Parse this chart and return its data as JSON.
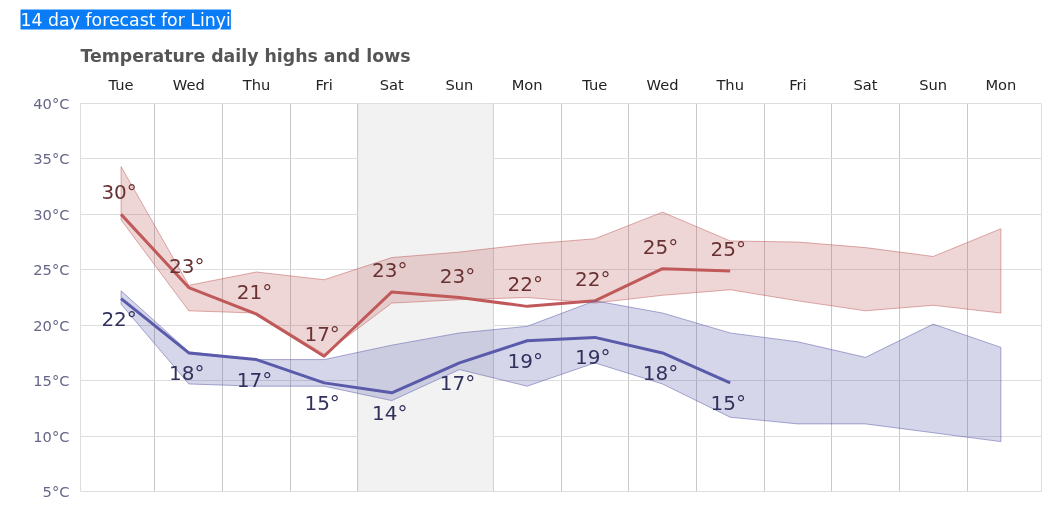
{
  "chart_data": {
    "type": "line",
    "title": "14 day forecast for Linyi",
    "subtitle": "Temperature daily highs and lows",
    "categories": [
      "Tue",
      "Wed",
      "Thu",
      "Fri",
      "Sat",
      "Sun",
      "Mon",
      "Tue",
      "Wed",
      "Thu",
      "Fri",
      "Sat",
      "Sun",
      "Mon"
    ],
    "series": [
      {
        "color": "#c05a5a",
        "values": [
          30.0,
          23.4,
          21.0,
          17.2,
          23.0,
          22.5,
          21.7,
          22.2,
          25.1,
          24.9,
          null,
          null,
          null,
          null
        ],
        "value_labels": [
          "30°",
          "23°",
          "21°",
          "17°",
          "23°",
          "23°",
          "22°",
          "22°",
          "25°",
          "25°",
          null,
          null,
          null,
          null
        ],
        "lower": [
          29.5,
          21.3,
          21.1,
          17.4,
          22.0,
          22.3,
          22.5,
          22.0,
          22.7,
          23.2,
          22.2,
          21.3,
          21.8,
          21.1
        ],
        "upper": [
          34.3,
          23.6,
          24.8,
          24.1,
          26.1,
          26.6,
          27.3,
          27.8,
          30.2,
          27.6,
          27.5,
          27.0,
          26.2,
          28.7
        ]
      },
      {
        "color": "#5a5aaa",
        "values": [
          22.4,
          17.5,
          16.9,
          14.8,
          13.9,
          16.6,
          18.6,
          18.9,
          17.5,
          14.8,
          null,
          null,
          null,
          null
        ],
        "value_labels": [
          "22°",
          "18°",
          "17°",
          "15°",
          "14°",
          "17°",
          "19°",
          "19°",
          "18°",
          "15°",
          null,
          null,
          null,
          null
        ],
        "lower": [
          21.9,
          14.7,
          14.5,
          14.5,
          13.2,
          16.0,
          14.5,
          16.6,
          14.7,
          11.7,
          11.1,
          11.1,
          10.3,
          9.5
        ],
        "upper": [
          23.1,
          17.6,
          16.9,
          16.9,
          18.2,
          19.3,
          19.9,
          22.2,
          21.1,
          19.3,
          18.5,
          17.1,
          20.1,
          18.0
        ]
      }
    ],
    "bands": [
      {
        "axis": "x",
        "from": "Sat",
        "to": "Sun",
        "color": "#f2f2f2"
      }
    ],
    "ylim": [
      5,
      40
    ],
    "yticks": [
      {
        "value": 5,
        "label": "5°C"
      },
      {
        "value": 10,
        "label": "10°C"
      },
      {
        "value": 15,
        "label": "15°C"
      },
      {
        "value": 20,
        "label": "20°C"
      },
      {
        "value": 25,
        "label": "25°C"
      },
      {
        "value": 30,
        "label": "30°C"
      },
      {
        "value": 35,
        "label": "35°C"
      },
      {
        "value": 40,
        "label": "40°C"
      }
    ],
    "grid": true,
    "line_style": "solid",
    "marker": "none"
  }
}
